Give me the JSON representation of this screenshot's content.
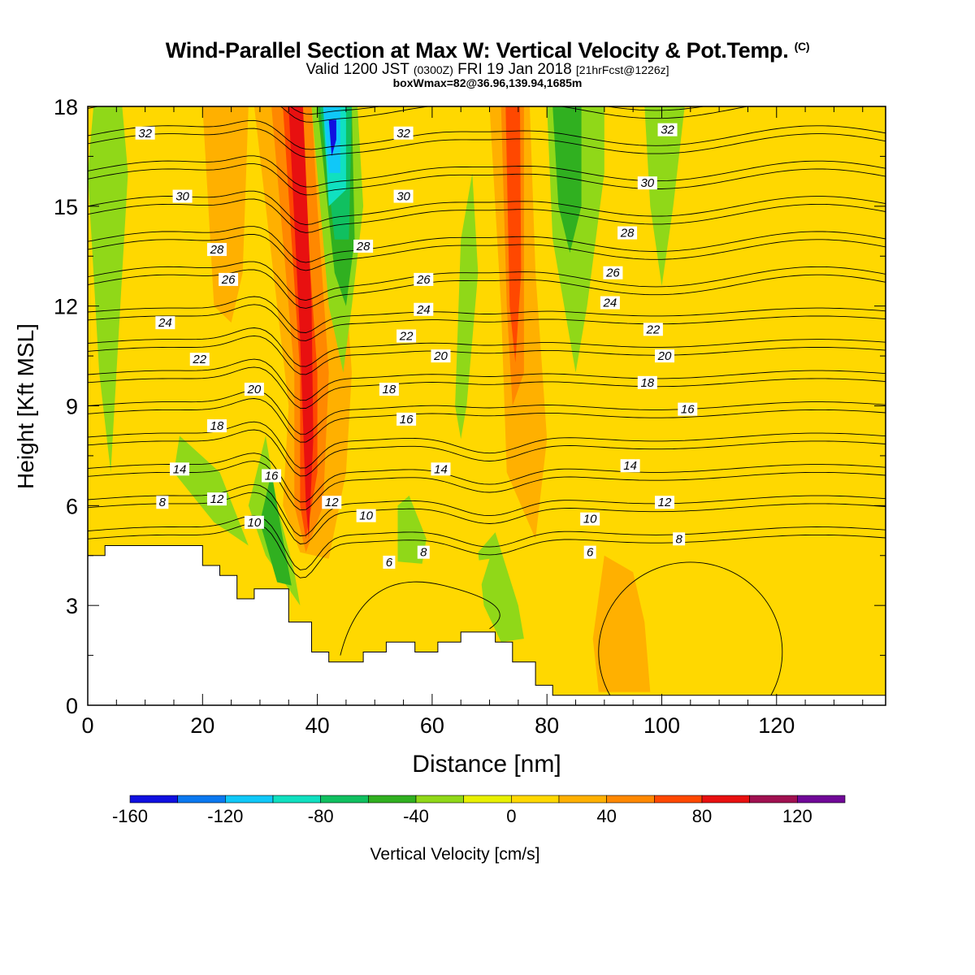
{
  "header": {
    "title": "Wind-Parallel Section at Max W: Vertical Velocity & Pot.Temp.",
    "copyright_mark": "(C)",
    "valid_prefix": "Valid 1200 JST",
    "valid_utc": "(0300Z)",
    "valid_date": "FRI 19 Jan 2018",
    "forecast_info": "[21hrFcst@1226z]",
    "box_info": "boxWmax=82@36.96,139.94,1685m"
  },
  "chart_data": {
    "type": "contour",
    "title": "Wind-Parallel Section at Max W: Vertical Velocity & Pot.Temp.",
    "xlabel": "Distance [nm]",
    "ylabel": "Height [Kft MSL]",
    "xlim": [
      0,
      139
    ],
    "ylim": [
      0,
      18
    ],
    "x_ticks": [
      0,
      20,
      40,
      60,
      80,
      100,
      120
    ],
    "y_ticks": [
      0,
      3,
      6,
      9,
      12,
      15,
      18
    ],
    "colorbar": {
      "label": "Vertical Velocity [cm/s]",
      "boundaries": [
        -160,
        -140,
        -120,
        -100,
        -80,
        -60,
        -40,
        -20,
        0,
        20,
        40,
        60,
        80,
        100,
        120,
        140
      ],
      "tick_labels": [
        -160,
        -120,
        -80,
        -40,
        0,
        40,
        80,
        120
      ],
      "colors": [
        "#1010e0",
        "#0a78f0",
        "#10c8f8",
        "#10e0c0",
        "#10c060",
        "#30b020",
        "#90d818",
        "#e8f000",
        "#ffd800",
        "#ffb000",
        "#ff8800",
        "#ff4800",
        "#e81010",
        "#a01050",
        "#700898"
      ]
    },
    "background_velocity_color": "#f4f400",
    "terrain": [
      [
        0,
        4.5
      ],
      [
        3,
        4.5
      ],
      [
        3,
        4.8
      ],
      [
        20,
        4.8
      ],
      [
        20,
        4.2
      ],
      [
        23,
        4.2
      ],
      [
        23,
        3.9
      ],
      [
        26,
        3.9
      ],
      [
        26,
        3.2
      ],
      [
        29,
        3.2
      ],
      [
        29,
        3.5
      ],
      [
        35,
        3.5
      ],
      [
        35,
        2.5
      ],
      [
        39,
        2.5
      ],
      [
        39,
        1.6
      ],
      [
        42,
        1.6
      ],
      [
        42,
        1.3
      ],
      [
        48,
        1.3
      ],
      [
        48,
        1.6
      ],
      [
        52,
        1.6
      ],
      [
        52,
        1.9
      ],
      [
        57,
        1.9
      ],
      [
        57,
        1.6
      ],
      [
        61,
        1.6
      ],
      [
        61,
        1.9
      ],
      [
        65,
        1.9
      ],
      [
        65,
        2.2
      ],
      [
        71,
        2.2
      ],
      [
        71,
        1.9
      ],
      [
        74,
        1.9
      ],
      [
        74,
        1.3
      ],
      [
        78,
        1.3
      ],
      [
        78,
        0.6
      ],
      [
        81,
        0.6
      ],
      [
        81,
        0.3
      ],
      [
        139,
        0.3
      ]
    ],
    "velocity_regions": [
      {
        "value": 30,
        "poly": [
          [
            29,
            18
          ],
          [
            35,
            9
          ],
          [
            34,
            6
          ],
          [
            37,
            4.6
          ],
          [
            42,
            4.4
          ],
          [
            45,
            7
          ],
          [
            46,
            10
          ],
          [
            44,
            15
          ],
          [
            42,
            18
          ]
        ]
      },
      {
        "value": 50,
        "poly": [
          [
            32,
            18
          ],
          [
            36,
            10
          ],
          [
            36,
            6
          ],
          [
            38,
            4.6
          ],
          [
            41,
            6
          ],
          [
            42,
            10
          ],
          [
            40,
            15
          ],
          [
            39,
            18
          ]
        ]
      },
      {
        "value": 70,
        "poly": [
          [
            34,
            18
          ],
          [
            37,
            10
          ],
          [
            37,
            6
          ],
          [
            38,
            5
          ],
          [
            40,
            7
          ],
          [
            40,
            10
          ],
          [
            38,
            15
          ],
          [
            37,
            18
          ]
        ]
      },
      {
        "value": 90,
        "poly": [
          [
            35,
            18
          ],
          [
            37,
            11
          ],
          [
            38,
            6
          ],
          [
            38.5,
            5
          ],
          [
            39.3,
            8
          ],
          [
            39,
            12
          ],
          [
            37.5,
            18
          ]
        ]
      },
      {
        "value": -30,
        "poly": [
          [
            39,
            18
          ],
          [
            42,
            12
          ],
          [
            44.5,
            10
          ],
          [
            46,
            12
          ],
          [
            48,
            15
          ],
          [
            47,
            18
          ]
        ]
      },
      {
        "value": -50,
        "poly": [
          [
            40,
            18
          ],
          [
            43,
            13
          ],
          [
            45,
            12
          ],
          [
            46.5,
            14
          ],
          [
            46,
            18
          ]
        ]
      },
      {
        "value": -70,
        "poly": [
          [
            40.5,
            18
          ],
          [
            43,
            14
          ],
          [
            45.5,
            14
          ],
          [
            46,
            18
          ]
        ]
      },
      {
        "value": -90,
        "poly": [
          [
            41,
            18
          ],
          [
            42,
            15
          ],
          [
            45,
            15.5
          ],
          [
            45,
            18
          ]
        ]
      },
      {
        "value": -110,
        "poly": [
          [
            41,
            18
          ],
          [
            42,
            16
          ],
          [
            44,
            16
          ],
          [
            44,
            18
          ]
        ]
      },
      {
        "value": -150,
        "poly": [
          [
            42,
            17.6
          ],
          [
            42.5,
            16.5
          ],
          [
            43.3,
            17
          ],
          [
            43.3,
            17.6
          ]
        ]
      },
      {
        "value": 30,
        "poly": [
          [
            70,
            18
          ],
          [
            72,
            12
          ],
          [
            73,
            7
          ],
          [
            78,
            5
          ],
          [
            80,
            8
          ],
          [
            78,
            13
          ],
          [
            77,
            18
          ]
        ]
      },
      {
        "value": 50,
        "poly": [
          [
            72,
            18
          ],
          [
            73,
            12
          ],
          [
            74,
            9
          ],
          [
            76,
            10
          ],
          [
            76,
            15
          ],
          [
            76,
            18
          ]
        ]
      },
      {
        "value": 70,
        "poly": [
          [
            72.8,
            18
          ],
          [
            73.5,
            12
          ],
          [
            74.5,
            10.3
          ],
          [
            75.5,
            13
          ],
          [
            75.3,
            18
          ]
        ]
      },
      {
        "value": -30,
        "poly": [
          [
            80,
            18
          ],
          [
            81,
            14
          ],
          [
            85,
            10
          ],
          [
            87,
            12
          ],
          [
            90,
            16
          ],
          [
            90,
            18
          ]
        ]
      },
      {
        "value": -50,
        "poly": [
          [
            81,
            18
          ],
          [
            82,
            15
          ],
          [
            84,
            13.6
          ],
          [
            86,
            15
          ],
          [
            86,
            18
          ]
        ]
      },
      {
        "value": -30,
        "poly": [
          [
            97,
            18
          ],
          [
            98,
            15
          ],
          [
            100,
            12.6
          ],
          [
            102,
            15
          ],
          [
            104,
            18
          ]
        ]
      },
      {
        "value": -30,
        "poly": [
          [
            0,
            16
          ],
          [
            1,
            18
          ],
          [
            6,
            18
          ],
          [
            7,
            16
          ],
          [
            6,
            13
          ],
          [
            4,
            7
          ],
          [
            2,
            10
          ],
          [
            1,
            13
          ]
        ]
      },
      {
        "value": -30,
        "poly": [
          [
            16,
            8.1
          ],
          [
            15,
            7
          ],
          [
            22,
            5.5
          ],
          [
            28,
            4.8
          ],
          [
            23,
            7
          ]
        ]
      },
      {
        "value": -30,
        "poly": [
          [
            28,
            6
          ],
          [
            31,
            8.1
          ],
          [
            33,
            6
          ],
          [
            36,
            4
          ],
          [
            37,
            3
          ],
          [
            35,
            3.5
          ],
          [
            31,
            4.5
          ]
        ]
      },
      {
        "value": -50,
        "poly": [
          [
            30,
            5.5
          ],
          [
            32,
            7
          ],
          [
            34,
            5
          ],
          [
            35.5,
            3.6
          ],
          [
            33,
            3.7
          ]
        ]
      },
      {
        "value": -30,
        "poly": [
          [
            54,
            6
          ],
          [
            56,
            6.3
          ],
          [
            59,
            5
          ],
          [
            58,
            4
          ],
          [
            54,
            4.3
          ]
        ]
      },
      {
        "value": -30,
        "poly": [
          [
            64,
            9
          ],
          [
            65,
            14
          ],
          [
            67,
            16
          ],
          [
            68,
            13
          ],
          [
            66,
            9
          ],
          [
            65,
            8
          ]
        ]
      },
      {
        "value": -30,
        "poly": [
          [
            68,
            4.6
          ],
          [
            71,
            5.2
          ],
          [
            75,
            3
          ],
          [
            76,
            2
          ],
          [
            72,
            1.9
          ],
          [
            69,
            3
          ]
        ]
      },
      {
        "value": 30,
        "poly": [
          [
            20,
            18
          ],
          [
            28,
            18
          ],
          [
            27,
            13
          ],
          [
            25,
            11.5
          ],
          [
            22,
            12
          ],
          [
            21,
            15
          ]
        ]
      },
      {
        "value": 30,
        "poly": [
          [
            90,
            4.5
          ],
          [
            95,
            4
          ],
          [
            97,
            2.5
          ],
          [
            98,
            0.4
          ],
          [
            89,
            0.4
          ],
          [
            88,
            2
          ]
        ]
      },
      {
        "value": 10,
        "poly": [
          [
            44,
            4.5
          ],
          [
            55,
            4.3
          ],
          [
            62,
            4.2
          ],
          [
            70,
            4.4
          ],
          [
            66,
            2.2
          ],
          [
            52,
            2.0
          ],
          [
            44,
            1.5
          ]
        ]
      }
    ],
    "theta_levels": [
      6,
      8,
      10,
      12,
      14,
      16,
      18,
      20,
      22,
      24,
      26,
      28,
      30,
      32
    ],
    "theta_labels": [
      {
        "v": 32,
        "x": 10,
        "y": 17.2
      },
      {
        "v": 30,
        "x": 16.5,
        "y": 15.3
      },
      {
        "v": 28,
        "x": 22.5,
        "y": 13.7
      },
      {
        "v": 26,
        "x": 24.5,
        "y": 12.8
      },
      {
        "v": 24,
        "x": 13.5,
        "y": 11.5
      },
      {
        "v": 22,
        "x": 19.5,
        "y": 10.4
      },
      {
        "v": 20,
        "x": 29,
        "y": 9.5
      },
      {
        "v": 18,
        "x": 22.5,
        "y": 8.4
      },
      {
        "v": 14,
        "x": 16,
        "y": 7.1
      },
      {
        "v": 12,
        "x": 22.5,
        "y": 6.2
      },
      {
        "v": 8,
        "x": 13,
        "y": 6.1
      },
      {
        "v": 10,
        "x": 29,
        "y": 5.5
      },
      {
        "v": 16,
        "x": 32,
        "y": 6.9
      },
      {
        "v": 12,
        "x": 42.5,
        "y": 6.1
      },
      {
        "v": 10,
        "x": 48.5,
        "y": 5.7
      },
      {
        "v": 6,
        "x": 52.5,
        "y": 4.3
      },
      {
        "v": 8,
        "x": 58.5,
        "y": 4.6
      },
      {
        "v": 32,
        "x": 55,
        "y": 17.2
      },
      {
        "v": 30,
        "x": 55,
        "y": 15.3
      },
      {
        "v": 28,
        "x": 48,
        "y": 13.8
      },
      {
        "v": 26,
        "x": 58.5,
        "y": 12.8
      },
      {
        "v": 24,
        "x": 58.5,
        "y": 11.9
      },
      {
        "v": 22,
        "x": 55.5,
        "y": 11.1
      },
      {
        "v": 20,
        "x": 61.5,
        "y": 10.5
      },
      {
        "v": 18,
        "x": 52.5,
        "y": 9.5
      },
      {
        "v": 16,
        "x": 55.5,
        "y": 8.6
      },
      {
        "v": 14,
        "x": 61.5,
        "y": 7.1
      },
      {
        "v": 32,
        "x": 101,
        "y": 17.3
      },
      {
        "v": 30,
        "x": 97.5,
        "y": 15.7
      },
      {
        "v": 28,
        "x": 94,
        "y": 14.2
      },
      {
        "v": 26,
        "x": 91.5,
        "y": 13.0
      },
      {
        "v": 24,
        "x": 91,
        "y": 12.1
      },
      {
        "v": 22,
        "x": 98.5,
        "y": 11.3
      },
      {
        "v": 20,
        "x": 100.5,
        "y": 10.5
      },
      {
        "v": 18,
        "x": 97.5,
        "y": 9.7
      },
      {
        "v": 16,
        "x": 104.5,
        "y": 8.9
      },
      {
        "v": 14,
        "x": 94.5,
        "y": 7.2
      },
      {
        "v": 12,
        "x": 100.5,
        "y": 6.1
      },
      {
        "v": 10,
        "x": 87.5,
        "y": 5.6
      },
      {
        "v": 8,
        "x": 103,
        "y": 5.0
      },
      {
        "v": 6,
        "x": 87.5,
        "y": 4.6
      }
    ]
  }
}
